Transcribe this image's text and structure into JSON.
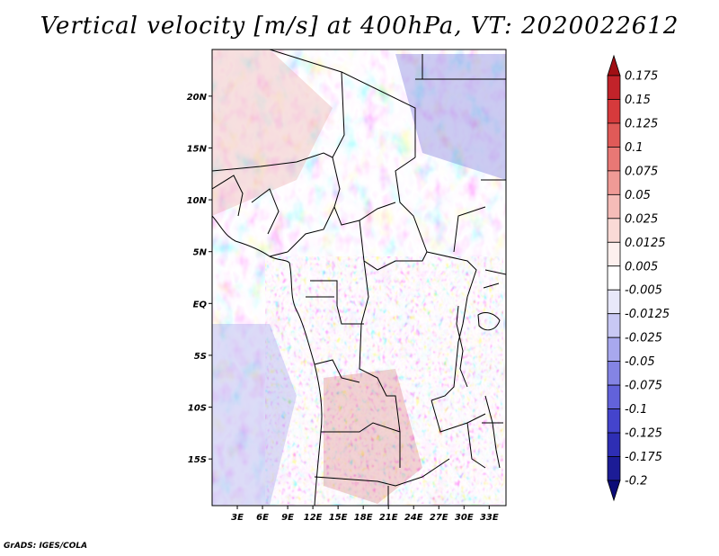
{
  "title": "Vertical velocity [m/s] at 400hPa, VT: 2020022612",
  "credit": "GrADS: IGES/COLA",
  "map": {
    "lon_range": [
      0,
      35
    ],
    "lat_range": [
      -19.5,
      24.5
    ],
    "lat_ticks": [
      {
        "value": 20,
        "label": "20N"
      },
      {
        "value": 15,
        "label": "15N"
      },
      {
        "value": 10,
        "label": "10N"
      },
      {
        "value": 5,
        "label": "5N"
      },
      {
        "value": 0,
        "label": "EQ"
      },
      {
        "value": -5,
        "label": "5S"
      },
      {
        "value": -10,
        "label": "10S"
      },
      {
        "value": -15,
        "label": "15S"
      }
    ],
    "lon_ticks": [
      {
        "value": 3,
        "label": "3E"
      },
      {
        "value": 6,
        "label": "6E"
      },
      {
        "value": 9,
        "label": "9E"
      },
      {
        "value": 12,
        "label": "12E"
      },
      {
        "value": 15,
        "label": "15E"
      },
      {
        "value": 18,
        "label": "18E"
      },
      {
        "value": 21,
        "label": "21E"
      },
      {
        "value": 24,
        "label": "24E"
      },
      {
        "value": 27,
        "label": "27E"
      },
      {
        "value": 30,
        "label": "30E"
      },
      {
        "value": 33,
        "label": "33E"
      }
    ]
  },
  "colorbar": {
    "levels": [
      "0.175",
      "0.15",
      "0.125",
      "0.1",
      "0.075",
      "0.05",
      "0.025",
      "0.0125",
      "0.005",
      "-0.005",
      "-0.0125",
      "-0.025",
      "-0.05",
      "-0.075",
      "-0.1",
      "-0.125",
      "-0.175",
      "-0.2"
    ],
    "colors": [
      "#a00f14",
      "#c2232a",
      "#d63a3c",
      "#e05a58",
      "#e87875",
      "#ef9a96",
      "#f5bcb8",
      "#fadad6",
      "#fdf0ee",
      "#ffffff",
      "#e8e8fa",
      "#c8c8f4",
      "#a8a8ee",
      "#8484e4",
      "#6262da",
      "#4444cc",
      "#2e2eb4",
      "#1c1c96",
      "#0c0c78"
    ]
  }
}
